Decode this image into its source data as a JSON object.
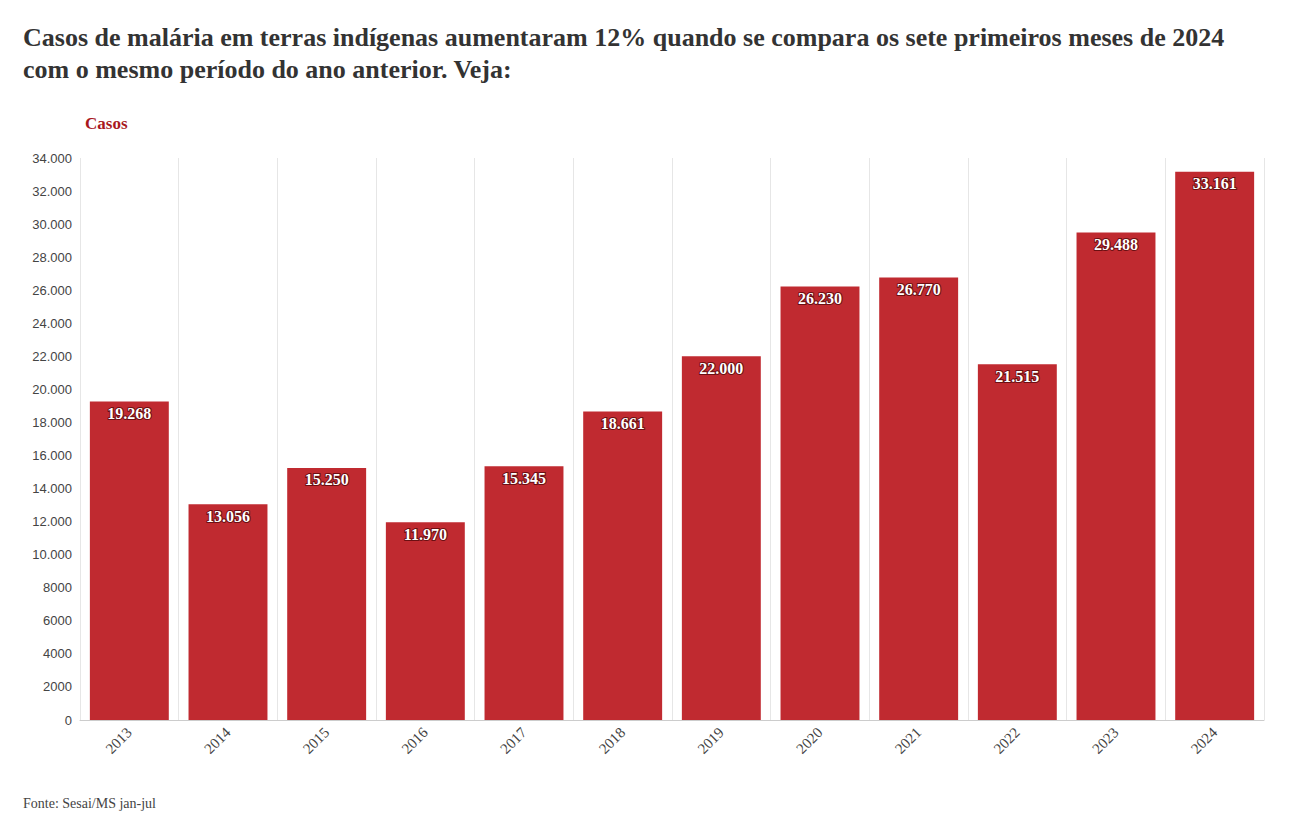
{
  "chart_data": {
    "type": "bar",
    "title": "Casos de malária em terras indígenas aumentaram 12% quando se compara os sete primeiros meses de 2024 com o mesmo período do ano anterior. Veja:",
    "y_label": "Casos",
    "source": "Fonte: Sesai/MS jan-jul",
    "categories": [
      "2013",
      "2014",
      "2015",
      "2016",
      "2017",
      "2018",
      "2019",
      "2020",
      "2021",
      "2022",
      "2023",
      "2024"
    ],
    "values": [
      19268,
      13056,
      15250,
      11970,
      15345,
      18661,
      22000,
      26230,
      26770,
      21515,
      29488,
      33161
    ],
    "value_labels": [
      "19.268",
      "13.056",
      "15.250",
      "11.970",
      "15.345",
      "18.661",
      "22.000",
      "26.230",
      "26.770",
      "21.515",
      "29.488",
      "33.161"
    ],
    "color": "#c02a30",
    "ylim": [
      0,
      34000
    ],
    "yticks": [
      0,
      2000,
      4000,
      6000,
      8000,
      {
        "value": 10000,
        "label": "10.000"
      },
      {
        "value": 12000,
        "label": "12.000"
      },
      {
        "value": 14000,
        "label": "14.000"
      },
      {
        "value": 16000,
        "label": "16.000"
      },
      {
        "value": 18000,
        "label": "18.000"
      },
      {
        "value": 20000,
        "label": "20.000"
      },
      {
        "value": 22000,
        "label": "22.000"
      },
      {
        "value": 24000,
        "label": "24.000"
      },
      {
        "value": 26000,
        "label": "26.000"
      },
      {
        "value": 28000,
        "label": "28.000"
      },
      {
        "value": 30000,
        "label": "30.000"
      },
      {
        "value": 32000,
        "label": "32.000"
      },
      {
        "value": 34000,
        "label": "34.000"
      }
    ],
    "grid": true,
    "data_labels": true
  }
}
